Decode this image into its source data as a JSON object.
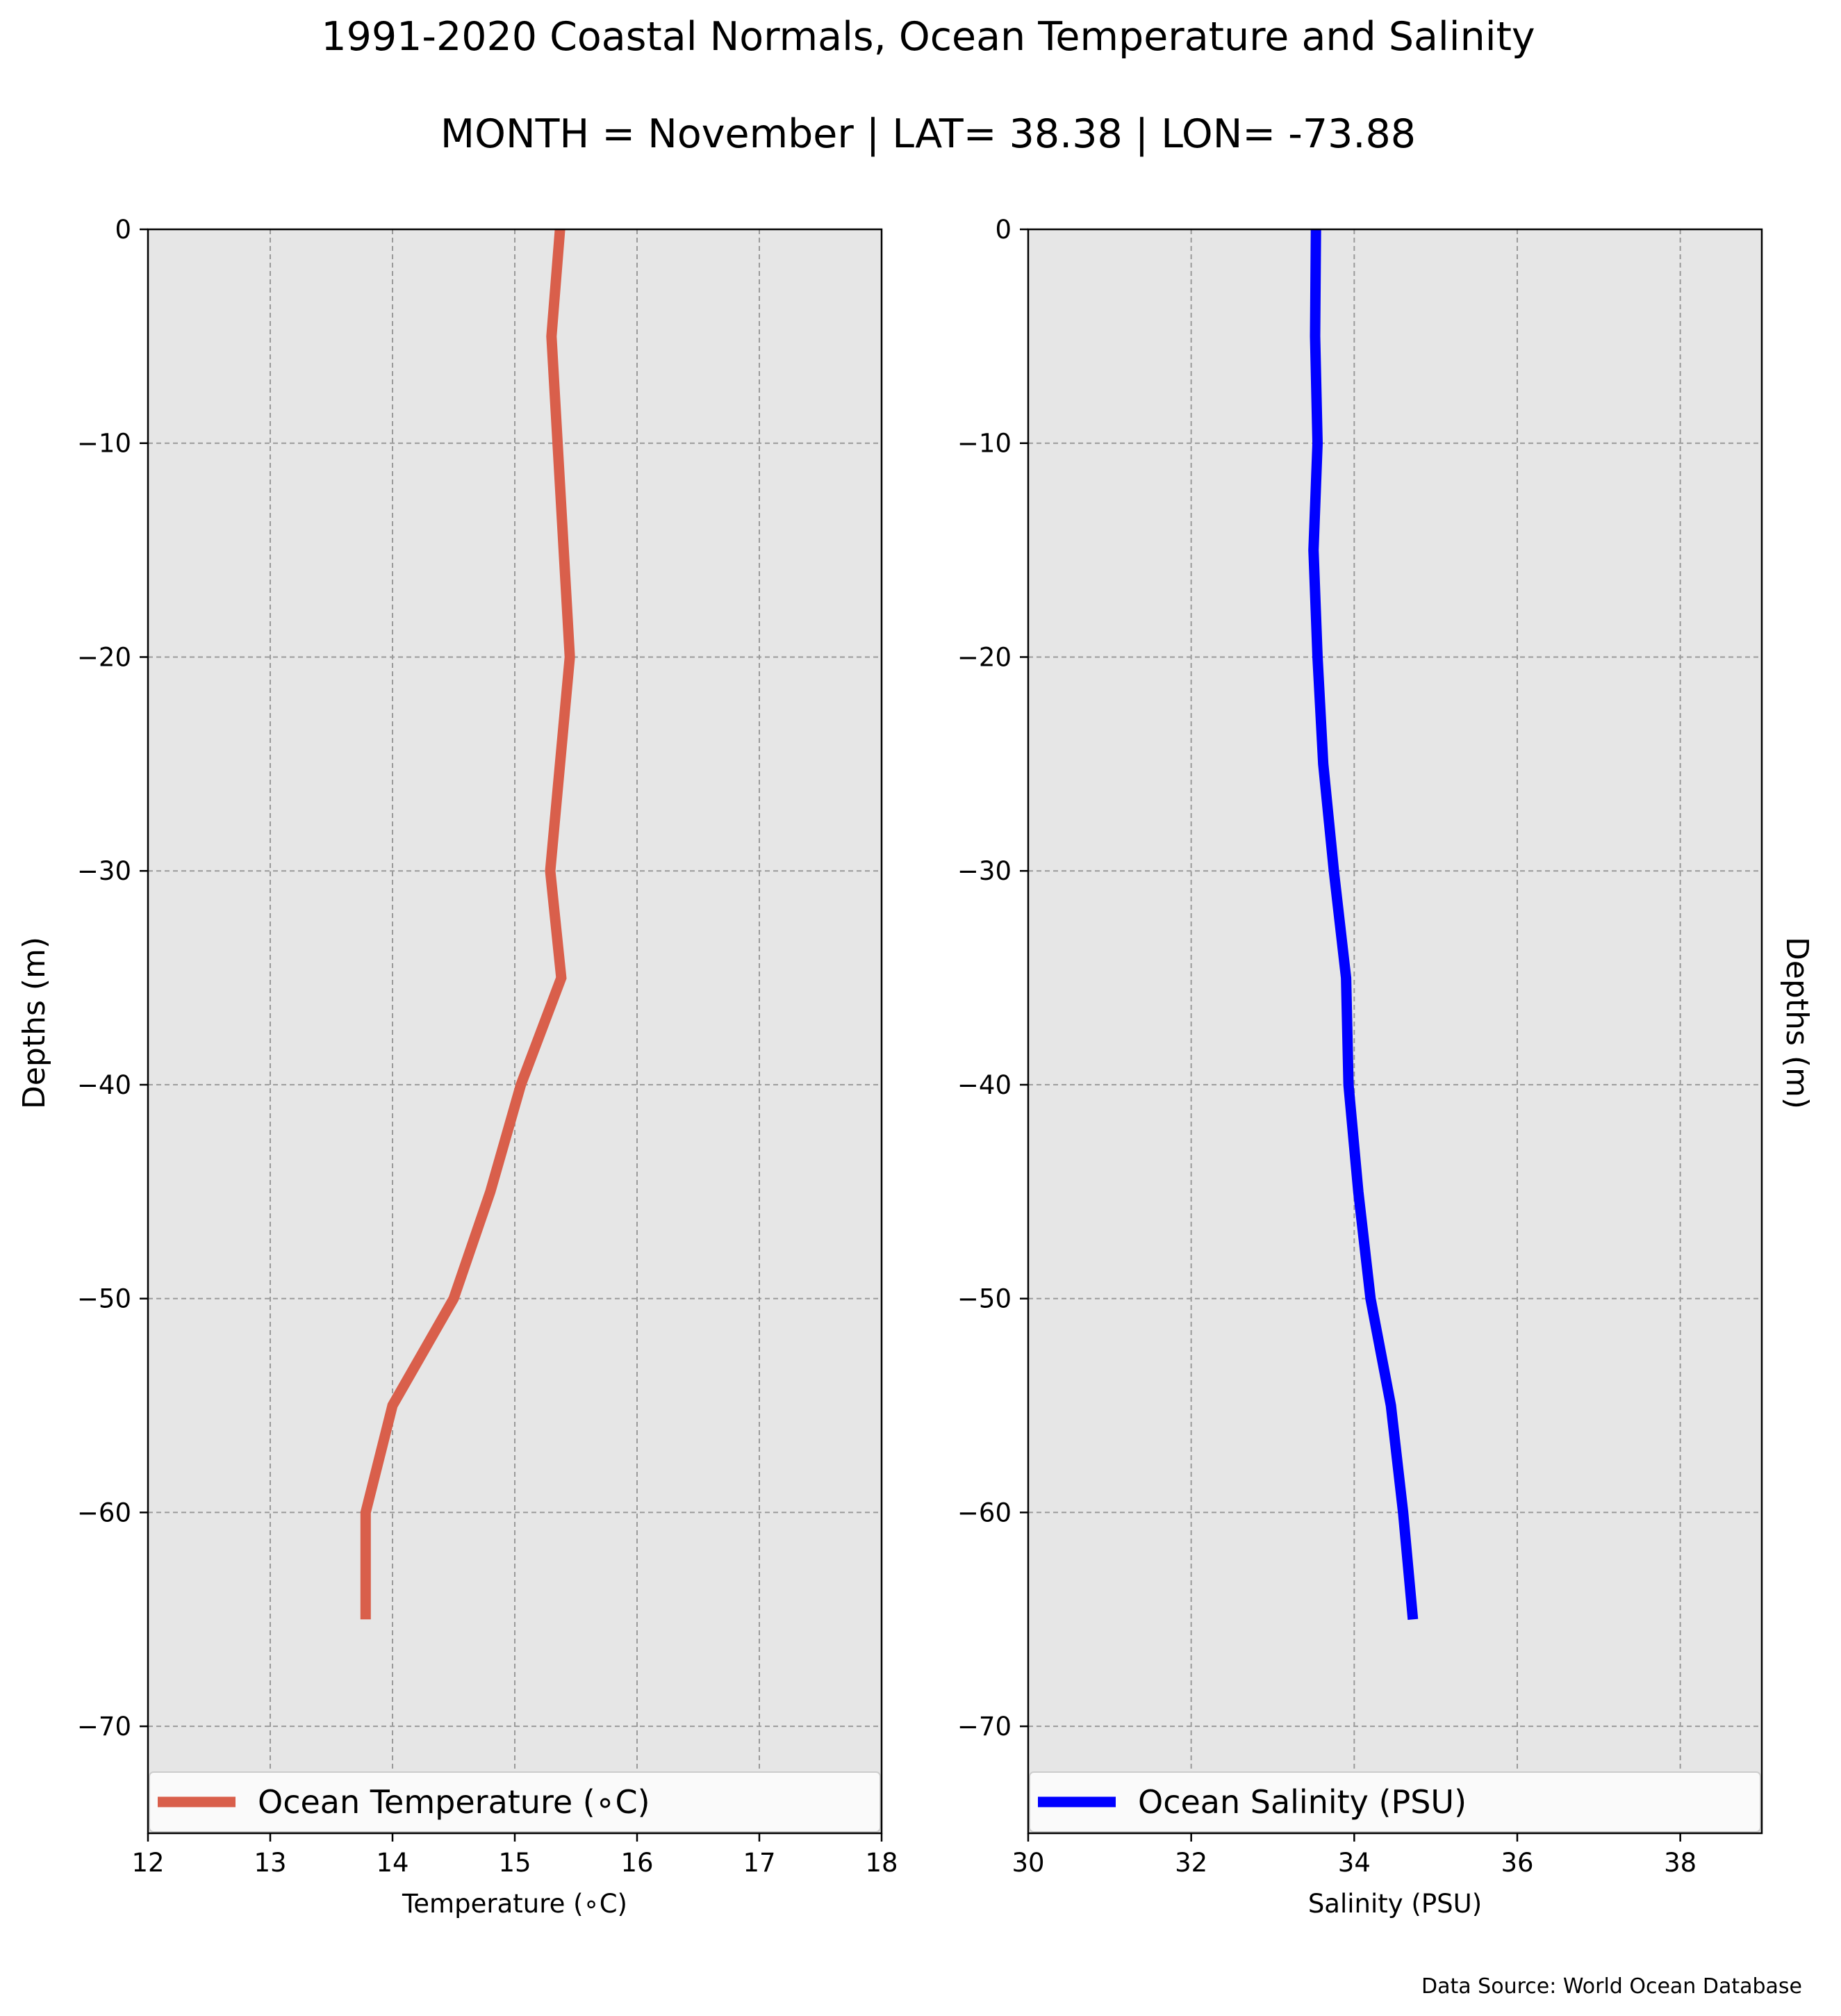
{
  "title": "1991-2020 Coastal Normals, Ocean Temperature and Salinity",
  "subtitle": "MONTH = November | LAT= 38.38 | LON= -73.88",
  "source": "Data Source: World Ocean Database",
  "chart_data": [
    {
      "type": "line",
      "xlabel": "Temperature (∘C)",
      "ylabel": "Depths (m)",
      "xlim": [
        12,
        18
      ],
      "ylim": [
        -75,
        0
      ],
      "xticks": [
        12,
        13,
        14,
        15,
        16,
        17,
        18
      ],
      "yticks": [
        0,
        -10,
        -20,
        -30,
        -40,
        -50,
        -60,
        -70
      ],
      "grid": true,
      "legend_position": "lower-center",
      "series": [
        {
          "name": "Ocean Temperature (∘C)",
          "color": "#d95f4b",
          "x": [
            15.37,
            15.3,
            15.35,
            15.45,
            15.37,
            15.29,
            15.38,
            15.05,
            14.8,
            14.5,
            14.0,
            13.78,
            13.78
          ],
          "y": [
            0,
            -5,
            -10,
            -20,
            -25,
            -30,
            -35,
            -40,
            -45,
            -50,
            -55,
            -60,
            -65
          ]
        }
      ]
    },
    {
      "type": "line",
      "xlabel": "Salinity (PSU)",
      "ylabel": "Depths (m)",
      "xlim": [
        30,
        39
      ],
      "ylim": [
        -75,
        0
      ],
      "xticks": [
        30,
        32,
        34,
        36,
        38
      ],
      "yticks": [
        0,
        -10,
        -20,
        -30,
        -40,
        -50,
        -60,
        -70
      ],
      "grid": true,
      "legend_position": "lower-center",
      "series": [
        {
          "name": "Ocean Salinity (PSU)",
          "color": "#0000ff",
          "x": [
            33.53,
            33.52,
            33.55,
            33.5,
            33.55,
            33.62,
            33.75,
            33.9,
            33.93,
            34.05,
            34.2,
            34.45,
            34.6,
            34.72
          ],
          "y": [
            0,
            -5,
            -10,
            -15,
            -20,
            -25,
            -30,
            -35,
            -40,
            -45,
            -50,
            -55,
            -60,
            -65
          ]
        }
      ]
    }
  ]
}
